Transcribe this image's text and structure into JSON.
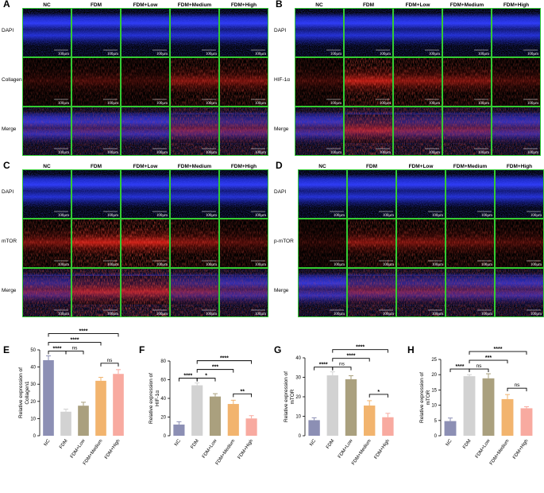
{
  "groups": [
    "NC",
    "FDM",
    "FDM+Low",
    "FDM+Medium",
    "FDM+High"
  ],
  "scale_bar_label": "100μm",
  "colors": {
    "frame": "#33cc33",
    "nc": "#8c8fb4",
    "fdm": "#d2d2d2",
    "low": "#aaa07e",
    "medium": "#f2b46e",
    "high": "#f8aaa0",
    "dapi": "#1f2ae0",
    "signal": "#d2201a"
  },
  "image_panels": [
    {
      "letter": "A",
      "rows": [
        "DAPI",
        "Collagen1",
        "Merge"
      ],
      "intensity": [
        0.18,
        0.3,
        0.22,
        0.6,
        0.55
      ]
    },
    {
      "letter": "B",
      "rows": [
        "DAPI",
        "HIF-1α",
        "Merge"
      ],
      "intensity": [
        0.25,
        0.9,
        0.65,
        0.55,
        0.3
      ]
    },
    {
      "letter": "C",
      "rows": [
        "DAPI",
        "mTOR",
        "Merge"
      ],
      "intensity": [
        0.55,
        0.95,
        1.0,
        0.6,
        0.35
      ]
    },
    {
      "letter": "D",
      "rows": [
        "DAPI",
        "p-mTOR",
        "Merge"
      ],
      "intensity": [
        0.15,
        0.6,
        0.55,
        0.45,
        0.3
      ]
    }
  ],
  "chart_data": [
    {
      "letter": "E",
      "type": "bar",
      "ylabel": "Relative expression of Collagen1",
      "categories": [
        "NC",
        "FDM",
        "FDM+Low",
        "FDM+Medium",
        "FDM+High"
      ],
      "values": [
        44,
        14,
        17.5,
        32,
        36
      ],
      "errors": [
        2.5,
        1.5,
        2,
        2,
        2.5
      ],
      "ylim": [
        0,
        50
      ],
      "yticks": [
        0,
        10,
        20,
        30,
        40,
        50
      ],
      "comparisons": [
        {
          "from": 0,
          "to": 1,
          "label": "****",
          "level": 1
        },
        {
          "from": 1,
          "to": 2,
          "label": "ns",
          "level": 1
        },
        {
          "from": 3,
          "to": 4,
          "label": "ns",
          "level": 1
        },
        {
          "from": 0,
          "to": 3,
          "label": "****",
          "level": 2
        },
        {
          "from": 0,
          "to": 4,
          "label": "****",
          "level": 3
        }
      ]
    },
    {
      "letter": "F",
      "type": "bar",
      "ylabel": "Relative expression of HIF-1α",
      "categories": [
        "NC",
        "FDM",
        "FDM+Low",
        "FDM+Medium",
        "FDM+High"
      ],
      "values": [
        12,
        54,
        42,
        34,
        18.5
      ],
      "errors": [
        3,
        2.5,
        3,
        4,
        3
      ],
      "ylim": [
        0,
        80
      ],
      "yticks": [
        0,
        20,
        40,
        60,
        80
      ],
      "comparisons": [
        {
          "from": 0,
          "to": 1,
          "label": "****",
          "level": 1
        },
        {
          "from": 1,
          "to": 2,
          "label": "*",
          "level": 1
        },
        {
          "from": 3,
          "to": 4,
          "label": "**",
          "level": 1
        },
        {
          "from": 1,
          "to": 3,
          "label": "***",
          "level": 2
        },
        {
          "from": 1,
          "to": 4,
          "label": "****",
          "level": 3
        }
      ]
    },
    {
      "letter": "G",
      "type": "bar",
      "ylabel": "Relative expression of mTOR",
      "categories": [
        "NC",
        "FDM",
        "FDM+Low",
        "FDM+Medium",
        "FDM+High"
      ],
      "values": [
        8,
        31,
        29,
        15.5,
        9.5
      ],
      "errors": [
        1.2,
        1.8,
        1.8,
        2.5,
        2
      ],
      "ylim": [
        0,
        40
      ],
      "yticks": [
        0,
        10,
        20,
        30,
        40
      ],
      "comparisons": [
        {
          "from": 0,
          "to": 1,
          "label": "****",
          "level": 1
        },
        {
          "from": 1,
          "to": 2,
          "label": "ns",
          "level": 1
        },
        {
          "from": 3,
          "to": 4,
          "label": "*",
          "level": 1
        },
        {
          "from": 1,
          "to": 3,
          "label": "****",
          "level": 2
        },
        {
          "from": 1,
          "to": 4,
          "label": "****",
          "level": 3
        }
      ]
    },
    {
      "letter": "H",
      "type": "bar",
      "ylabel": "Relative expression of mTOR",
      "categories": [
        "NC",
        "FDM",
        "FDM+Low",
        "FDM+Medium",
        "FDM+High"
      ],
      "values": [
        4.8,
        19.5,
        18.8,
        12,
        9
      ],
      "errors": [
        1,
        0.5,
        1.5,
        1.5,
        0.5
      ],
      "ylim": [
        0,
        25
      ],
      "yticks": [
        0,
        5,
        10,
        15,
        20,
        25
      ],
      "comparisons": [
        {
          "from": 0,
          "to": 1,
          "label": "****",
          "level": 1
        },
        {
          "from": 1,
          "to": 2,
          "label": "ns",
          "level": 1
        },
        {
          "from": 3,
          "to": 4,
          "label": "ns",
          "level": 1
        },
        {
          "from": 1,
          "to": 3,
          "label": "***",
          "level": 2
        },
        {
          "from": 1,
          "to": 4,
          "label": "****",
          "level": 3
        }
      ]
    }
  ]
}
